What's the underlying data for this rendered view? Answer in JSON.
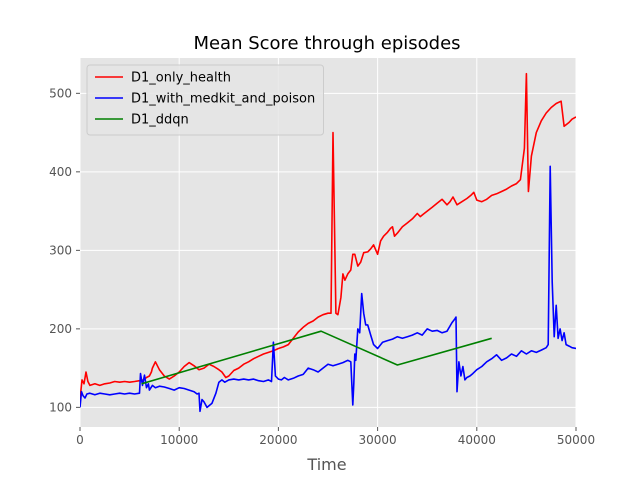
{
  "chart_data": {
    "type": "line",
    "title": "Mean Score through episodes",
    "xlabel": "Time",
    "ylabel": "",
    "xlim": [
      0,
      50000
    ],
    "ylim": [
      75,
      545
    ],
    "xticks": [
      0,
      10000,
      20000,
      30000,
      40000,
      50000
    ],
    "yticks": [
      100,
      200,
      300,
      400,
      500
    ],
    "xtick_labels": [
      "0",
      "10000",
      "20000",
      "30000",
      "40000",
      "50000"
    ],
    "ytick_labels": [
      "100",
      "200",
      "300",
      "400",
      "500"
    ],
    "grid": true,
    "legend_position": "top-left",
    "series": [
      {
        "name": "D1_only_health",
        "color": "#ff0000",
        "x": [
          0,
          200,
          400,
          600,
          800,
          1000,
          1500,
          2000,
          2500,
          3000,
          3500,
          4000,
          4500,
          5000,
          5500,
          6000,
          6400,
          6700,
          7000,
          7200,
          7300,
          7600,
          8000,
          8500,
          9000,
          9500,
          10000,
          10500,
          11000,
          11500,
          12000,
          12500,
          13000,
          13500,
          14000,
          14300,
          14700,
          15000,
          15500,
          16000,
          16500,
          17000,
          17500,
          18000,
          18500,
          19000,
          19500,
          20000,
          20500,
          21000,
          21500,
          22000,
          22500,
          23000,
          23500,
          24000,
          24500,
          25000,
          25300,
          25500,
          25700,
          25800,
          26000,
          26300,
          26500,
          26700,
          27000,
          27300,
          27500,
          27700,
          28000,
          28300,
          28600,
          29000,
          29300,
          29600,
          30000,
          30300,
          30600,
          31000,
          31300,
          31500,
          31700,
          32000,
          32500,
          33000,
          33500,
          34000,
          34300,
          34600,
          35000,
          35500,
          36000,
          36500,
          37000,
          37300,
          37600,
          38000,
          38500,
          39000,
          39400,
          39700,
          40000,
          40500,
          41000,
          41500,
          42000,
          42500,
          43000,
          43500,
          44000,
          44400,
          44800,
          45000,
          45200,
          45500,
          46000,
          46500,
          47000,
          47500,
          48000,
          48500,
          48800,
          49000,
          49300,
          49600,
          50000
        ],
        "y": [
          110,
          135,
          130,
          145,
          133,
          128,
          130,
          128,
          130,
          131,
          133,
          132,
          133,
          132,
          133,
          134,
          135,
          138,
          140,
          145,
          150,
          158,
          148,
          140,
          136,
          140,
          145,
          152,
          157,
          153,
          148,
          150,
          155,
          152,
          148,
          145,
          138,
          140,
          147,
          150,
          155,
          158,
          162,
          165,
          168,
          170,
          172,
          175,
          177,
          180,
          188,
          196,
          202,
          207,
          210,
          215,
          218,
          220,
          220,
          450,
          300,
          220,
          218,
          240,
          270,
          262,
          270,
          275,
          295,
          295,
          280,
          285,
          297,
          298,
          302,
          307,
          295,
          312,
          318,
          323,
          328,
          330,
          318,
          322,
          330,
          335,
          340,
          347,
          343,
          346,
          350,
          355,
          360,
          365,
          358,
          362,
          368,
          358,
          362,
          366,
          370,
          374,
          364,
          362,
          365,
          370,
          372,
          375,
          378,
          382,
          385,
          390,
          430,
          525,
          375,
          420,
          450,
          465,
          475,
          482,
          487,
          490,
          458,
          460,
          463,
          467,
          470
        ]
      },
      {
        "name": "D1_with_medkit_and_poison",
        "color": "#0000ff",
        "x": [
          0,
          150,
          300,
          500,
          700,
          1000,
          1500,
          2000,
          2500,
          3000,
          3500,
          4000,
          4500,
          5000,
          5500,
          6000,
          6100,
          6300,
          6500,
          6700,
          6900,
          7000,
          7300,
          7600,
          8000,
          8500,
          9000,
          9500,
          10000,
          10500,
          11000,
          11500,
          11800,
          12000,
          12100,
          12300,
          12500,
          12800,
          13000,
          13300,
          13700,
          14000,
          14300,
          14600,
          15000,
          15500,
          16000,
          16500,
          17000,
          17500,
          18000,
          18500,
          19000,
          19300,
          19500,
          19700,
          20000,
          20300,
          20600,
          21000,
          21500,
          22000,
          22500,
          23000,
          23500,
          24000,
          24500,
          25000,
          25500,
          26000,
          26500,
          27000,
          27300,
          27500,
          27600,
          27700,
          27800,
          28000,
          28200,
          28400,
          28600,
          28800,
          29000,
          29300,
          29600,
          30000,
          30500,
          31000,
          31500,
          32000,
          32500,
          33000,
          33500,
          34000,
          34500,
          35000,
          35500,
          36000,
          36500,
          37000,
          37500,
          37800,
          37900,
          38000,
          38200,
          38400,
          38600,
          38800,
          39000,
          39300,
          39600,
          40000,
          40500,
          41000,
          41500,
          42000,
          42500,
          43000,
          43500,
          44000,
          44500,
          45000,
          45500,
          46000,
          46500,
          47000,
          47200,
          47400,
          47600,
          47800,
          48000,
          48200,
          48400,
          48600,
          48800,
          49000,
          49300,
          49600,
          50000
        ],
        "y": [
          100,
          120,
          115,
          112,
          117,
          118,
          116,
          118,
          117,
          116,
          117,
          118,
          117,
          118,
          117,
          118,
          143,
          128,
          141,
          125,
          130,
          122,
          128,
          125,
          127,
          126,
          124,
          122,
          125,
          124,
          122,
          120,
          117,
          118,
          95,
          110,
          107,
          100,
          102,
          105,
          118,
          132,
          135,
          132,
          135,
          136,
          135,
          136,
          135,
          136,
          134,
          133,
          135,
          133,
          183,
          140,
          136,
          135,
          138,
          135,
          137,
          140,
          142,
          150,
          148,
          145,
          150,
          155,
          153,
          155,
          157,
          160,
          158,
          103,
          130,
          168,
          160,
          200,
          195,
          245,
          220,
          205,
          205,
          192,
          180,
          175,
          183,
          185,
          187,
          190,
          188,
          190,
          192,
          195,
          192,
          200,
          197,
          198,
          195,
          197,
          208,
          213,
          215,
          120,
          158,
          140,
          152,
          135,
          138,
          140,
          143,
          148,
          152,
          158,
          162,
          167,
          160,
          163,
          168,
          165,
          172,
          168,
          172,
          170,
          173,
          176,
          180,
          407,
          260,
          190,
          230,
          188,
          200,
          185,
          195,
          180,
          178,
          176,
          175
        ]
      },
      {
        "name": "D1_ddqn",
        "color": "#008000",
        "x": [
          6200,
          24300,
          32000,
          41500
        ],
        "y": [
          130,
          197,
          154,
          188
        ]
      }
    ]
  }
}
